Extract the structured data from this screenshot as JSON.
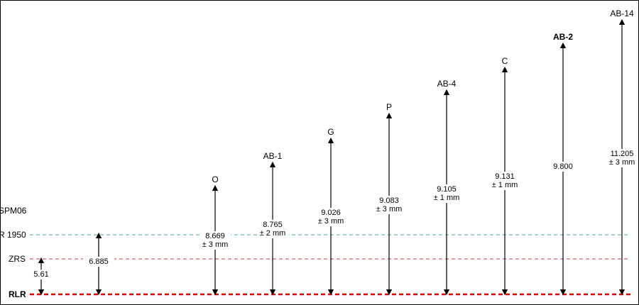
{
  "levels": [
    {
      "label": "SPM06"
    },
    {
      "label": "R 1950"
    },
    {
      "label": "ZRS"
    },
    {
      "label": "RLR"
    }
  ],
  "markers": [
    {
      "value": "5.61"
    },
    {
      "value": "6.885"
    },
    {
      "label": "O",
      "value": "8.669",
      "tolerance": "± 3 mm"
    },
    {
      "label": "AB-1",
      "value": "8.765",
      "tolerance": "± 2 mm"
    },
    {
      "label": "G",
      "value": "9.026",
      "tolerance": "± 3 mm"
    },
    {
      "label": "P",
      "value": "9.083",
      "tolerance": "± 3 mm"
    },
    {
      "label": "AB-4",
      "value": "9.105",
      "tolerance": "± 1 mm"
    },
    {
      "label": "C",
      "value": "9.131",
      "tolerance": "± 1 mm"
    },
    {
      "label": "AB-2",
      "value": "9.800"
    },
    {
      "label": "AB-14",
      "value": "11.205",
      "tolerance": "± 3 mm"
    }
  ]
}
